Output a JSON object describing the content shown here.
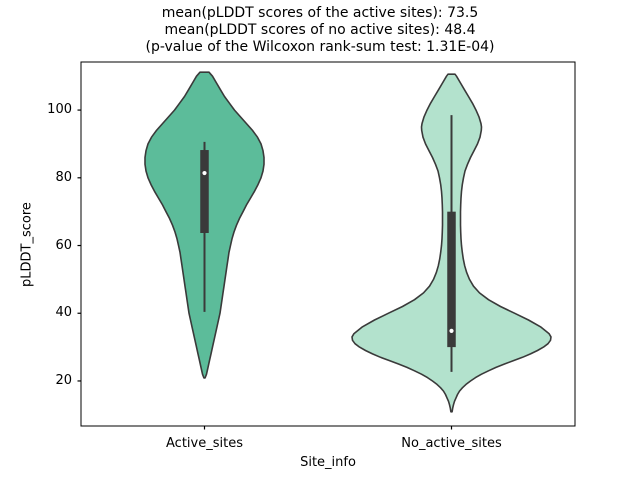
{
  "chart_data": {
    "type": "violin",
    "title_lines": [
      "mean(pLDDT scores of the active sites): 73.5",
      "mean(pLDDT scores of no active sites): 48.4",
      "(p-value of the Wilcoxon rank-sum test: 1.31E-04)"
    ],
    "wilcoxon_p_value": "1.31E-04",
    "xlabel": "Site_info",
    "ylabel": "pLDDT_score",
    "categories": [
      "Active_sites",
      "No_active_sites"
    ],
    "yticks": [
      20,
      40,
      60,
      80,
      100
    ],
    "ylim": [
      6.7,
      114.2
    ],
    "grid": false,
    "legend": "none",
    "colors": {
      "edge": "#3a3a3a",
      "box": "#3a3a3a",
      "median_dot": "#ffffff",
      "spine": "#000000",
      "active_fill": "#5cbc9a",
      "no_active_fill": "#b3e2cd"
    },
    "series": [
      {
        "name": "Active_sites",
        "fill": "#5cbc9a",
        "mean": 73.5,
        "median": 81.4,
        "q1": 63.7,
        "q3": 88.2,
        "whisker_low": 40.4,
        "whisker_high": 90.6,
        "kde_range": [
          20.9,
          111.2
        ],
        "profile": [
          [
            111.2,
            4.5
          ],
          [
            110,
            8
          ],
          [
            108,
            12
          ],
          [
            106,
            16
          ],
          [
            104,
            20
          ],
          [
            102,
            25
          ],
          [
            100,
            30
          ],
          [
            98,
            36
          ],
          [
            96,
            42
          ],
          [
            94,
            48
          ],
          [
            92,
            53
          ],
          [
            90,
            56.5
          ],
          [
            88,
            58.5
          ],
          [
            86,
            59.5
          ],
          [
            84,
            59.5
          ],
          [
            82,
            58.5
          ],
          [
            80,
            56.5
          ],
          [
            78,
            53.5
          ],
          [
            76,
            50
          ],
          [
            74,
            46
          ],
          [
            72,
            42
          ],
          [
            70,
            38.5
          ],
          [
            68,
            35
          ],
          [
            66,
            32
          ],
          [
            64,
            29.5
          ],
          [
            62,
            27.5
          ],
          [
            60,
            26
          ],
          [
            58,
            24.5
          ],
          [
            56,
            23.5
          ],
          [
            54,
            22.5
          ],
          [
            52,
            21.5
          ],
          [
            50,
            20.5
          ],
          [
            48,
            19.5
          ],
          [
            46,
            18.5
          ],
          [
            44,
            17.5
          ],
          [
            42,
            16.5
          ],
          [
            40,
            15.5
          ],
          [
            38,
            14
          ],
          [
            36,
            12.5
          ],
          [
            34,
            11
          ],
          [
            32,
            9.5
          ],
          [
            30,
            8
          ],
          [
            28,
            6.5
          ],
          [
            26,
            5
          ],
          [
            24,
            3.5
          ],
          [
            22,
            2
          ],
          [
            20.9,
            0.6
          ]
        ]
      },
      {
        "name": "No_active_sites",
        "fill": "#b3e2cd",
        "mean": 48.4,
        "median": 34.8,
        "q1": 30.0,
        "q3": 70.0,
        "whisker_low": 22.7,
        "whisker_high": 98.5,
        "kde_range": [
          10.9,
          110.6
        ],
        "profile": [
          [
            110.6,
            3.5
          ],
          [
            110,
            5
          ],
          [
            108,
            9
          ],
          [
            106,
            13
          ],
          [
            104,
            17
          ],
          [
            102,
            21
          ],
          [
            100,
            24.5
          ],
          [
            98,
            27.5
          ],
          [
            96,
            29.5
          ],
          [
            95,
            30
          ],
          [
            94,
            29.8
          ],
          [
            92,
            28.5
          ],
          [
            90,
            26
          ],
          [
            88,
            22.5
          ],
          [
            86,
            19
          ],
          [
            84,
            16
          ],
          [
            82,
            13.5
          ],
          [
            80,
            12
          ],
          [
            78,
            10.8
          ],
          [
            76,
            10
          ],
          [
            74,
            9.5
          ],
          [
            72,
            9.2
          ],
          [
            70,
            9
          ],
          [
            68,
            9
          ],
          [
            66,
            9
          ],
          [
            64,
            9.2
          ],
          [
            62,
            9.5
          ],
          [
            60,
            10
          ],
          [
            58,
            10.8
          ],
          [
            56,
            11.8
          ],
          [
            54,
            13.2
          ],
          [
            52,
            15.2
          ],
          [
            50,
            18
          ],
          [
            48,
            22
          ],
          [
            46,
            28
          ],
          [
            44,
            37
          ],
          [
            42,
            49
          ],
          [
            40,
            63
          ],
          [
            38,
            77
          ],
          [
            36,
            89
          ],
          [
            34,
            97.5
          ],
          [
            33,
            99.5
          ],
          [
            32,
            99
          ],
          [
            31,
            96.5
          ],
          [
            30,
            92
          ],
          [
            29,
            86
          ],
          [
            28,
            79
          ],
          [
            27,
            71
          ],
          [
            26,
            62
          ],
          [
            25,
            53
          ],
          [
            24,
            44.5
          ],
          [
            23,
            37
          ],
          [
            22,
            30
          ],
          [
            21,
            24
          ],
          [
            20,
            19
          ],
          [
            19,
            14.5
          ],
          [
            18,
            11
          ],
          [
            17,
            8
          ],
          [
            16,
            6
          ],
          [
            15,
            4.5
          ],
          [
            14,
            3
          ],
          [
            13,
            2
          ],
          [
            12,
            1.2
          ],
          [
            10.9,
            0.6
          ]
        ]
      }
    ]
  }
}
